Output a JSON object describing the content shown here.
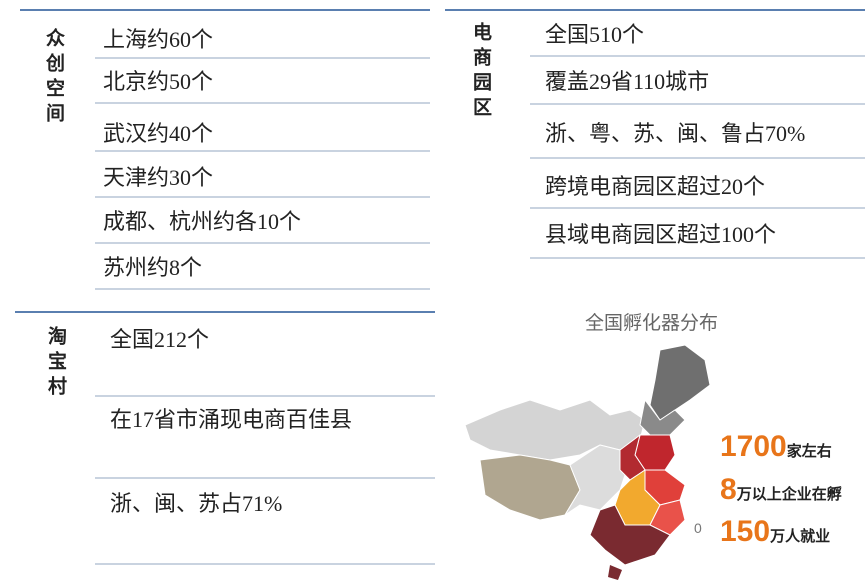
{
  "panels": [
    {
      "label": "众创空间",
      "items": [
        "上海约60个",
        "北京约50个",
        "武汉约40个",
        "天津约30个",
        "成都、杭州约各10个",
        "苏州约8个"
      ]
    },
    {
      "label": "电商园区",
      "items": [
        "全国510个",
        "覆盖29省110城市",
        "浙、粤、苏、闽、鲁占70%",
        "跨境电商园区超过20个",
        "县域电商园区超过100个"
      ]
    },
    {
      "label": "淘宝村",
      "items": [
        "全国212个",
        "在17省市涌现电商百佳县",
        "浙、闽、苏占71%"
      ]
    }
  ],
  "map": {
    "title": "全国孵化器分布",
    "note": "0",
    "stats": [
      {
        "number": "1700",
        "text": "家左右"
      },
      {
        "number": "8",
        "text": "万以上企业在孵"
      },
      {
        "number": "150",
        "text": "万人就业"
      }
    ]
  }
}
